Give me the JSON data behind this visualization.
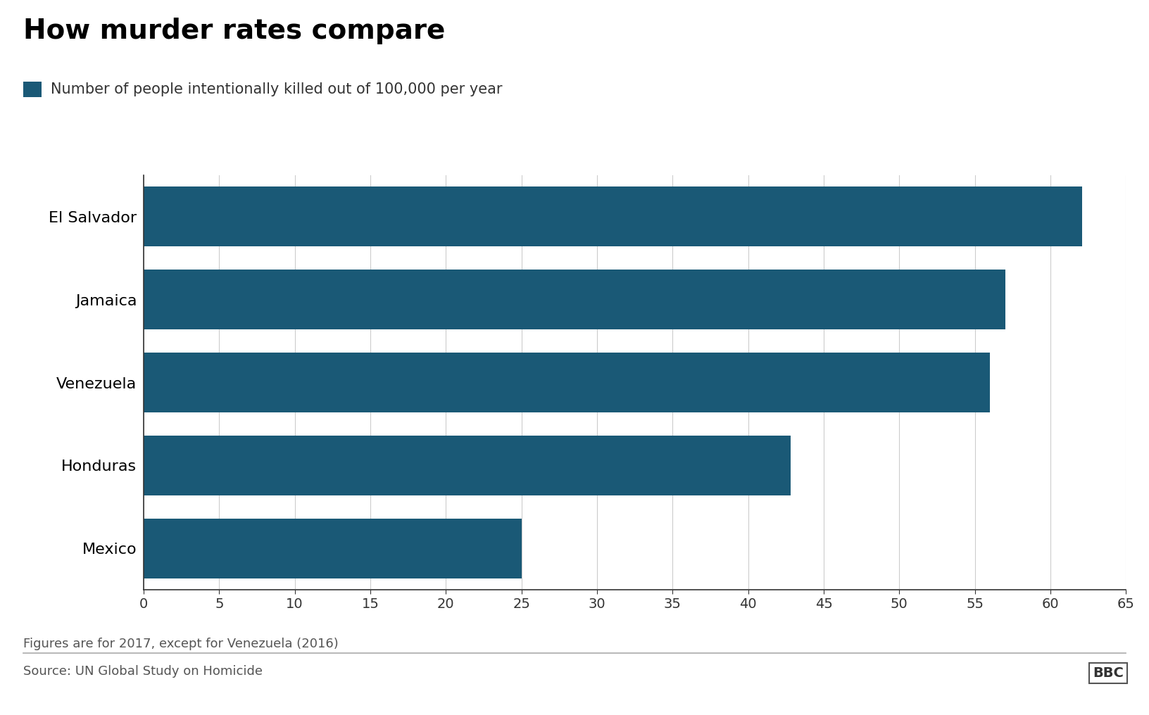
{
  "title": "How murder rates compare",
  "legend_label": "Number of people intentionally killed out of 100,000 per year",
  "categories": [
    "El Salvador",
    "Jamaica",
    "Venezuela",
    "Honduras",
    "Mexico"
  ],
  "values": [
    62.1,
    57.0,
    56.0,
    42.8,
    25.0
  ],
  "bar_color": "#1a5976",
  "xlim": [
    0,
    65
  ],
  "xticks": [
    0,
    5,
    10,
    15,
    20,
    25,
    30,
    35,
    40,
    45,
    50,
    55,
    60,
    65
  ],
  "footnote": "Figures are for 2017, except for Venezuela (2016)",
  "source": "Source: UN Global Study on Homicide",
  "bbc_text": "BBC",
  "background_color": "#ffffff",
  "title_fontsize": 28,
  "legend_fontsize": 15,
  "tick_fontsize": 14,
  "label_fontsize": 16,
  "footnote_fontsize": 13,
  "source_fontsize": 13
}
